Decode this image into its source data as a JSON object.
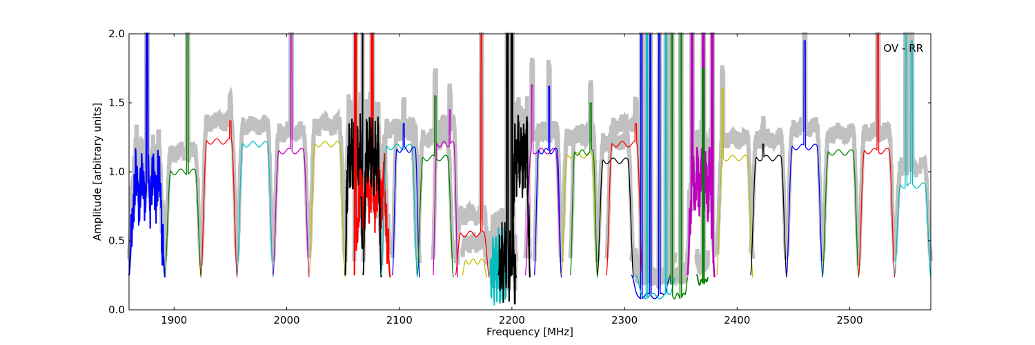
{
  "chart_data": {
    "type": "line",
    "title": "",
    "xlabel": "Frequency [MHz]",
    "ylabel": "Amplitude [arbitrary units]",
    "xlim": [
      1860,
      2572
    ],
    "ylim": [
      0.0,
      2.0
    ],
    "x_ticks": [
      1900,
      2000,
      2100,
      2200,
      2300,
      2400,
      2500
    ],
    "y_ticks": [
      0.0,
      0.5,
      1.0,
      1.5,
      2.0
    ],
    "x_tick_labels": [
      "1900",
      "2000",
      "2100",
      "2200",
      "2300",
      "2400",
      "2500"
    ],
    "y_tick_labels": [
      "0.0",
      "0.5",
      "1.0",
      "1.5",
      "2.0"
    ],
    "annotation": "OV - RR",
    "grid": false,
    "background_color": "#c0c0c0",
    "color_cycle": [
      "#0000ff",
      "#008000",
      "#ff0000",
      "#00bfbf",
      "#bf00bf",
      "#bfbf00",
      "#000000"
    ],
    "subbands": [
      {
        "start": 1860,
        "end": 1892,
        "level": 0.9,
        "color": "#0000ff",
        "width": 2.2,
        "noisy": true,
        "spikes": [
          [
            1876,
            2.0
          ]
        ]
      },
      {
        "start": 1892,
        "end": 1924,
        "level": 1.0,
        "color": "#008000",
        "width": 1.3,
        "spikes": [
          [
            1912,
            2.0
          ]
        ]
      },
      {
        "start": 1924,
        "end": 1956,
        "level": 1.22,
        "color": "#ff0000",
        "width": 1.3,
        "spikes": [
          [
            1950,
            1.37
          ]
        ]
      },
      {
        "start": 1956,
        "end": 1988,
        "level": 1.2,
        "color": "#00bfbf",
        "width": 1.3
      },
      {
        "start": 1988,
        "end": 2020,
        "level": 1.15,
        "color": "#bf00bf",
        "width": 1.3,
        "spikes": [
          [
            2004,
            2.0
          ]
        ]
      },
      {
        "start": 2020,
        "end": 2052,
        "level": 1.2,
        "color": "#bfbf00",
        "width": 1.3
      },
      {
        "start": 2052,
        "end": 2068,
        "level": 1.12,
        "color": "#000000",
        "width": 2.2,
        "noisy": true,
        "spikes": [
          [
            2068,
            2.0
          ]
        ]
      },
      {
        "start": 2060,
        "end": 2092,
        "level": 0.85,
        "color": "#ff0000",
        "width": 2.2,
        "noisy": true,
        "spikes": [
          [
            2061,
            2.0
          ],
          [
            2076,
            2.0
          ]
        ]
      },
      {
        "start": 2068,
        "end": 2084,
        "level": 1.13,
        "color": "#000000",
        "width": 2.0,
        "noisy": true
      },
      {
        "start": 2084,
        "end": 2116,
        "level": 1.18,
        "color": "#00bfbf",
        "width": 1.3
      },
      {
        "start": 2094,
        "end": 2118,
        "level": 1.16,
        "color": "#0000ff",
        "width": 1.3,
        "spikes": [
          [
            2104,
            1.35
          ]
        ]
      },
      {
        "start": 2116,
        "end": 2148,
        "level": 1.1,
        "color": "#008000",
        "width": 1.3,
        "spikes": [
          [
            2132,
            1.55
          ]
        ]
      },
      {
        "start": 2130,
        "end": 2152,
        "level": 1.2,
        "color": "#bf00bf",
        "width": 1.3,
        "spikes": [
          [
            2145,
            1.45
          ]
        ]
      },
      {
        "start": 2150,
        "end": 2180,
        "level": 0.55,
        "color": "#ff0000",
        "width": 1.3,
        "spikes": [
          [
            2173,
            2.0
          ]
        ]
      },
      {
        "start": 2156,
        "end": 2178,
        "level": 0.35,
        "color": "#bfbf00",
        "width": 1.3
      },
      {
        "start": 2180,
        "end": 2196,
        "level": 0.3,
        "color": "#00bfbf",
        "width": 2.0,
        "noisy": true
      },
      {
        "start": 2188,
        "end": 2204,
        "level": 0.35,
        "color": "#000000",
        "width": 2.0,
        "noisy": true,
        "spikes": [
          [
            2196,
            2.0
          ],
          [
            2200,
            2.0
          ]
        ]
      },
      {
        "start": 2200,
        "end": 2216,
        "level": 1.12,
        "color": "#000000",
        "width": 2.2,
        "noisy": true
      },
      {
        "start": 2212,
        "end": 2244,
        "level": 1.15,
        "color": "#bf00bf",
        "width": 1.3,
        "spikes": [
          [
            2218,
            1.63
          ]
        ]
      },
      {
        "start": 2220,
        "end": 2244,
        "level": 1.15,
        "color": "#0000ff",
        "width": 1.3,
        "spikes": [
          [
            2233,
            1.62
          ]
        ]
      },
      {
        "start": 2244,
        "end": 2276,
        "level": 1.12,
        "color": "#bfbf00",
        "width": 1.3
      },
      {
        "start": 2252,
        "end": 2276,
        "level": 1.14,
        "color": "#008000",
        "width": 1.3,
        "spikes": [
          [
            2270,
            1.5
          ]
        ]
      },
      {
        "start": 2276,
        "end": 2308,
        "level": 1.08,
        "color": "#000000",
        "width": 1.3
      },
      {
        "start": 2284,
        "end": 2316,
        "level": 1.2,
        "color": "#ff0000",
        "width": 1.3,
        "spikes": [
          [
            2310,
            1.35
          ]
        ]
      },
      {
        "start": 2306,
        "end": 2340,
        "level": 0.1,
        "color": "#0000ff",
        "width": 1.5,
        "spikes": [
          [
            2315,
            2.0
          ],
          [
            2323,
            2.0
          ],
          [
            2331,
            2.0
          ]
        ]
      },
      {
        "start": 2310,
        "end": 2345,
        "level": 0.1,
        "color": "#00bfbf",
        "width": 1.5,
        "spikes": [
          [
            2320,
            2.0
          ],
          [
            2337,
            2.0
          ]
        ]
      },
      {
        "start": 2340,
        "end": 2356,
        "level": 0.1,
        "color": "#008000",
        "width": 1.5,
        "spikes": [
          [
            2342,
            2.0
          ],
          [
            2350,
            2.0
          ]
        ]
      },
      {
        "start": 2356,
        "end": 2380,
        "level": 0.9,
        "color": "#bf00bf",
        "width": 2.5,
        "noisy": true,
        "spikes": [
          [
            2360,
            2.0
          ],
          [
            2370,
            2.0
          ],
          [
            2378,
            2.0
          ]
        ]
      },
      {
        "start": 2364,
        "end": 2374,
        "level": 0.2,
        "color": "#008000",
        "width": 2.0,
        "spikes": [
          [
            2370,
            1.75
          ]
        ]
      },
      {
        "start": 2382,
        "end": 2414,
        "level": 1.1,
        "color": "#bfbf00",
        "width": 1.3,
        "spikes": [
          [
            2387,
            1.6
          ]
        ]
      },
      {
        "start": 2412,
        "end": 2444,
        "level": 1.1,
        "color": "#000000",
        "width": 1.3,
        "spikes": [
          [
            2423,
            1.2
          ]
        ]
      },
      {
        "start": 2444,
        "end": 2476,
        "level": 1.18,
        "color": "#0000ff",
        "width": 1.3,
        "spikes": [
          [
            2460,
            1.95
          ]
        ]
      },
      {
        "start": 2476,
        "end": 2508,
        "level": 1.14,
        "color": "#008000",
        "width": 1.3
      },
      {
        "start": 2508,
        "end": 2540,
        "level": 1.15,
        "color": "#ff0000",
        "width": 1.3,
        "spikes": [
          [
            2525,
            2.0
          ]
        ]
      },
      {
        "start": 2540,
        "end": 2572,
        "level": 0.9,
        "color": "#00bfbf",
        "width": 1.3,
        "spikes": [
          [
            2550,
            2.0
          ],
          [
            2555,
            1.95
          ]
        ]
      }
    ]
  }
}
